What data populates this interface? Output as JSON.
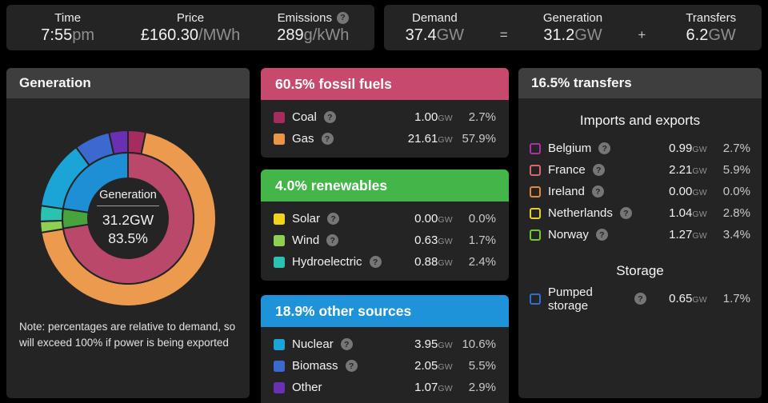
{
  "ui": {
    "help_glyph": "?",
    "gw_unit": "GW"
  },
  "colors": {
    "page_bg": "#000000",
    "panel_bg": "#242424",
    "header_gray": "#3e3e3e",
    "fossil_accent": "#c7496e",
    "renewables_accent": "#43b549",
    "other_accent": "#1e93d9"
  },
  "topbar": {
    "stats": [
      {
        "label": "Time",
        "value": "7:55",
        "unit": "pm",
        "help": false
      },
      {
        "label": "Price",
        "value": "£160.30",
        "unit": "/MWh",
        "help": false
      },
      {
        "label": "Emissions",
        "value": "289",
        "unit": "g/kWh",
        "help": true
      }
    ],
    "equation": {
      "items": [
        {
          "label": "Demand",
          "value": "37.4",
          "unit": "GW"
        },
        {
          "label": "Generation",
          "value": "31.2",
          "unit": "GW"
        },
        {
          "label": "Transfers",
          "value": "6.2",
          "unit": "GW"
        }
      ],
      "operators": [
        "=",
        "+"
      ]
    }
  },
  "generation_panel": {
    "title": "Generation",
    "center": {
      "label": "Generation",
      "value": "31.2GW",
      "percent": "83.5%"
    },
    "note": "Note: percentages are relative to demand, so will exceed 100% if power is being exported"
  },
  "source_cards": [
    {
      "title": "60.5% fossil fuels",
      "color": "#c7496e",
      "rows": [
        {
          "name": "Coal",
          "swatch": "#a62c60",
          "help": true,
          "gw": "1.00",
          "pct": "2.7%"
        },
        {
          "name": "Gas",
          "swatch": "#eb9646",
          "help": true,
          "gw": "21.61",
          "pct": "57.9%"
        }
      ]
    },
    {
      "title": "4.0% renewables",
      "color": "#43b549",
      "rows": [
        {
          "name": "Solar",
          "swatch": "#f2d41c",
          "help": true,
          "gw": "0.00",
          "pct": "0.0%"
        },
        {
          "name": "Wind",
          "swatch": "#8ed052",
          "help": true,
          "gw": "0.63",
          "pct": "1.7%"
        },
        {
          "name": "Hydroelectric",
          "swatch": "#2ac3b1",
          "help": true,
          "gw": "0.88",
          "pct": "2.4%"
        }
      ]
    },
    {
      "title": "18.9% other sources",
      "color": "#1e93d9",
      "rows": [
        {
          "name": "Nuclear",
          "swatch": "#1ba5d6",
          "help": true,
          "gw": "3.95",
          "pct": "10.6%"
        },
        {
          "name": "Biomass",
          "swatch": "#3c69cf",
          "help": true,
          "gw": "2.05",
          "pct": "5.5%"
        },
        {
          "name": "Other",
          "swatch": "#6930b3",
          "help": false,
          "gw": "1.07",
          "pct": "2.9%"
        }
      ]
    }
  ],
  "transfers_panel": {
    "title": "16.5% transfers",
    "sections": [
      {
        "heading": "Imports and exports",
        "rows": [
          {
            "name": "Belgium",
            "swatch": "#ab2fae",
            "help": true,
            "gw": "0.99",
            "pct": "2.7%"
          },
          {
            "name": "France",
            "swatch": "#d4686c",
            "help": true,
            "gw": "2.21",
            "pct": "5.9%"
          },
          {
            "name": "Ireland",
            "swatch": "#df8a3d",
            "help": true,
            "gw": "0.00",
            "pct": "0.0%"
          },
          {
            "name": "Netherlands",
            "swatch": "#e6d222",
            "help": true,
            "gw": "1.04",
            "pct": "2.8%"
          },
          {
            "name": "Norway",
            "swatch": "#72ca33",
            "help": true,
            "gw": "1.27",
            "pct": "3.4%"
          }
        ]
      },
      {
        "heading": "Storage",
        "rows": [
          {
            "name": "Pumped storage",
            "swatch": "#2f6fd2",
            "help": true,
            "gw": "0.65",
            "pct": "1.7%"
          }
        ]
      }
    ]
  },
  "chart_data": {
    "type": "pie",
    "subtype": "double-ring-donut",
    "title": "Generation",
    "center_text": {
      "label": "Generation",
      "value": "31.2GW",
      "percent": "83.5%"
    },
    "units": "percent of demand",
    "start_angle_deg": 0,
    "direction": "clockwise",
    "generation_percent_of_demand": 83.5,
    "generation_gw": 31.2,
    "inner_ring": {
      "categories": [
        "fossil fuels",
        "renewables",
        "other sources"
      ],
      "values": [
        60.5,
        4.0,
        18.9
      ],
      "colors": [
        "#b9486b",
        "#47a33e",
        "#1e8fd4"
      ]
    },
    "outer_ring": {
      "categories": [
        "Coal",
        "Gas",
        "Solar",
        "Wind",
        "Hydroelectric",
        "Nuclear",
        "Biomass",
        "Other"
      ],
      "values": [
        2.7,
        57.9,
        0.0,
        1.7,
        2.4,
        10.6,
        5.5,
        2.9
      ],
      "values_gw": [
        1.0,
        21.61,
        0.0,
        0.63,
        0.88,
        3.95,
        2.05,
        1.07
      ],
      "colors": [
        "#a62c60",
        "#ec9a4e",
        "#f2d41c",
        "#8ed052",
        "#2ac3b1",
        "#1ba5d6",
        "#3c69cf",
        "#6930b3"
      ]
    },
    "note": "Note: percentages are relative to demand, so will exceed 100% if power is being exported"
  }
}
